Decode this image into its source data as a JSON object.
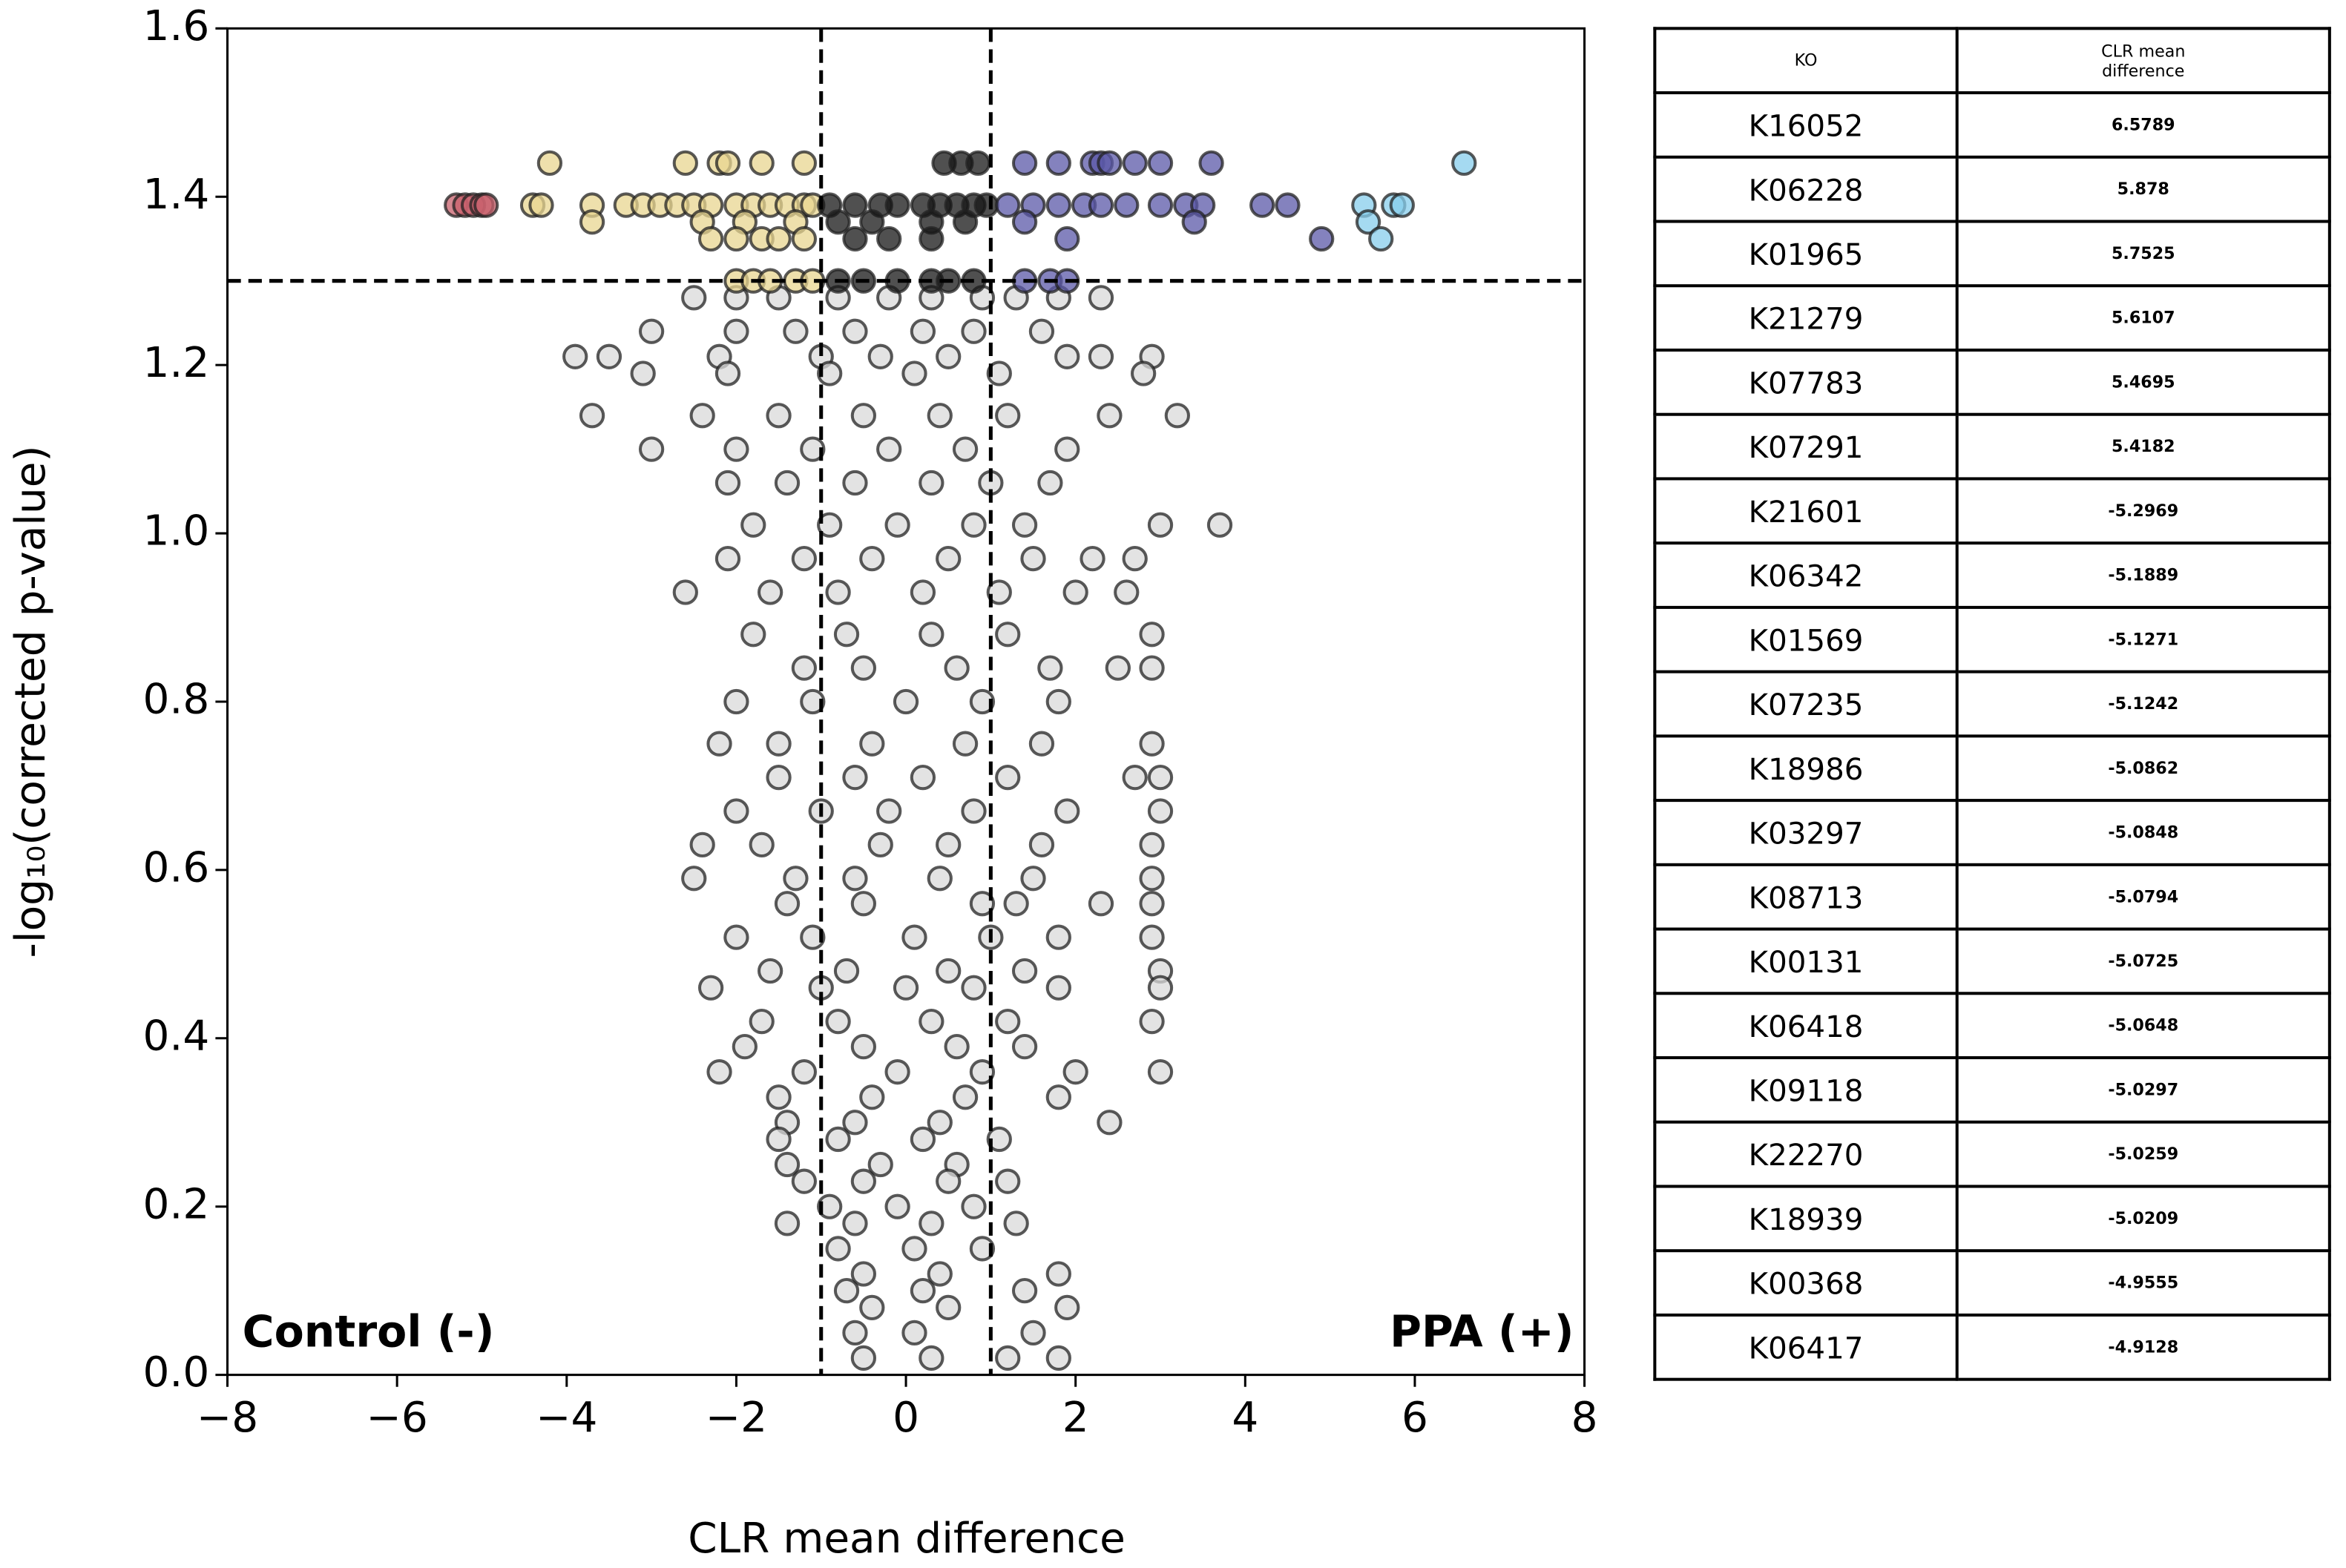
{
  "chart_data": {
    "type": "scatter",
    "xlabel": "CLR mean difference",
    "ylabel": "-log₁₀(corrected p-value)",
    "annotations": [
      "Control (-)",
      "PPA (+)"
    ],
    "xlim": [
      -8,
      8
    ],
    "xticks": [
      {
        "value": -8,
        "label": "−8"
      },
      {
        "value": -6,
        "label": "−6"
      },
      {
        "value": -4,
        "label": "−4"
      },
      {
        "value": -2,
        "label": "−2"
      },
      0,
      2,
      4,
      6,
      8
    ],
    "ylim": [
      0,
      1.6
    ],
    "yticks": [
      {
        "value": 0,
        "label": "0.0"
      },
      0.2,
      0.4,
      0.6,
      0.8,
      {
        "value": 1,
        "label": "1.0"
      },
      1.2,
      1.4,
      1.6
    ],
    "threshold_x": [
      -1,
      1
    ],
    "threshold_y": [
      1.3
    ],
    "series": [
      {
        "color": "#d9d9d9",
        "x": [
          -2.5,
          -2,
          -1.5,
          -0.8,
          -0.2,
          0.3,
          0.9,
          1.3,
          1.8,
          2.3,
          -3,
          -2,
          -1.3,
          -0.6,
          0.2,
          0.8,
          1.6,
          -3.9,
          -3.5,
          -2.2,
          -1,
          -0.3,
          0.5,
          1.9,
          2.3,
          2.9,
          -3.1,
          -2.1,
          -0.9,
          0.1,
          1.1,
          2.8,
          -3.7,
          -2.4,
          -1.5,
          -0.5,
          0.4,
          1.2,
          2.4,
          3.2,
          -3,
          -2,
          -1.1,
          -0.2,
          0.7,
          1.9,
          -2.1,
          -1.4,
          -0.6,
          0.3,
          1,
          1.7,
          -1.8,
          -0.9,
          -0.1,
          0.8,
          1.4,
          3,
          3.7,
          -2.1,
          -1.2,
          -0.4,
          0.5,
          1.5,
          2.2,
          2.7,
          -2.6,
          -1.6,
          -0.8,
          0.2,
          1.1,
          2,
          2.6,
          -1.8,
          -0.7,
          0.3,
          1.2,
          2.9,
          -1.2,
          -0.5,
          0.6,
          1.7,
          2.5,
          2.9,
          -2,
          -1.1,
          0,
          0.9,
          1.8,
          -2.2,
          -1.5,
          -0.4,
          0.7,
          1.6,
          2.9,
          -1.5,
          -0.6,
          0.2,
          1.2,
          2.7,
          3,
          -2,
          -1,
          -0.2,
          0.8,
          1.9,
          3,
          -2.4,
          -1.7,
          -0.3,
          0.5,
          1.6,
          2.9,
          -2.5,
          -1.3,
          -0.6,
          0.4,
          1.5,
          2.9,
          -1.4,
          -0.5,
          0.9,
          1.3,
          2.3,
          2.9,
          -2,
          -1.1,
          0.1,
          1,
          1.8,
          2.9,
          -1.6,
          -0.7,
          0.5,
          1.4,
          3,
          -2.3,
          -1,
          0,
          0.8,
          1.8,
          3,
          -1.7,
          -0.8,
          0.3,
          1.2,
          2.9,
          -1.9,
          -0.5,
          0.6,
          1.4,
          -2.2,
          -1.2,
          -0.1,
          0.9,
          2,
          3,
          -1.5,
          -0.4,
          0.7,
          1.8,
          -1.4,
          -0.6,
          0.4,
          2.4,
          -1.5,
          -0.8,
          0.2,
          1.1,
          -1.4,
          -0.3,
          0.6,
          -1.2,
          -0.5,
          0.5,
          1.2,
          -0.9,
          -0.1,
          0.8,
          -1.4,
          -0.6,
          0.3,
          1.3,
          -0.8,
          0.1,
          0.9,
          -0.5,
          0.4,
          1.8,
          -0.7,
          0.2,
          1.4,
          -0.4,
          0.5,
          1.9,
          -0.6,
          0.1,
          1.5,
          -0.5,
          0.3,
          1.2,
          1.8
        ],
        "values": [
          1.28,
          1.28,
          1.28,
          1.28,
          1.28,
          1.28,
          1.28,
          1.28,
          1.28,
          1.28,
          1.24,
          1.24,
          1.24,
          1.24,
          1.24,
          1.24,
          1.24,
          1.21,
          1.21,
          1.21,
          1.21,
          1.21,
          1.21,
          1.21,
          1.21,
          1.21,
          1.19,
          1.19,
          1.19,
          1.19,
          1.19,
          1.19,
          1.14,
          1.14,
          1.14,
          1.14,
          1.14,
          1.14,
          1.14,
          1.14,
          1.1,
          1.1,
          1.1,
          1.1,
          1.1,
          1.1,
          1.06,
          1.06,
          1.06,
          1.06,
          1.06,
          1.06,
          1.01,
          1.01,
          1.01,
          1.01,
          1.01,
          1.01,
          1.01,
          0.97,
          0.97,
          0.97,
          0.97,
          0.97,
          0.97,
          0.97,
          0.93,
          0.93,
          0.93,
          0.93,
          0.93,
          0.93,
          0.93,
          0.88,
          0.88,
          0.88,
          0.88,
          0.88,
          0.84,
          0.84,
          0.84,
          0.84,
          0.84,
          0.84,
          0.8,
          0.8,
          0.8,
          0.8,
          0.8,
          0.75,
          0.75,
          0.75,
          0.75,
          0.75,
          0.75,
          0.71,
          0.71,
          0.71,
          0.71,
          0.71,
          0.71,
          0.67,
          0.67,
          0.67,
          0.67,
          0.67,
          0.67,
          0.63,
          0.63,
          0.63,
          0.63,
          0.63,
          0.63,
          0.59,
          0.59,
          0.59,
          0.59,
          0.59,
          0.59,
          0.56,
          0.56,
          0.56,
          0.56,
          0.56,
          0.56,
          0.52,
          0.52,
          0.52,
          0.52,
          0.52,
          0.52,
          0.48,
          0.48,
          0.48,
          0.48,
          0.48,
          0.46,
          0.46,
          0.46,
          0.46,
          0.46,
          0.46,
          0.42,
          0.42,
          0.42,
          0.42,
          0.42,
          0.39,
          0.39,
          0.39,
          0.39,
          0.36,
          0.36,
          0.36,
          0.36,
          0.36,
          0.36,
          0.33,
          0.33,
          0.33,
          0.33,
          0.3,
          0.3,
          0.3,
          0.3,
          0.28,
          0.28,
          0.28,
          0.28,
          0.25,
          0.25,
          0.25,
          0.23,
          0.23,
          0.23,
          0.23,
          0.2,
          0.2,
          0.2,
          0.18,
          0.18,
          0.18,
          0.18,
          0.15,
          0.15,
          0.15,
          0.12,
          0.12,
          0.12,
          0.1,
          0.1,
          0.1,
          0.08,
          0.08,
          0.08,
          0.05,
          0.05,
          0.05,
          0.02,
          0.02,
          0.02,
          0.02
        ]
      },
      {
        "color": "#e8d590",
        "x": [
          -4.2,
          -2.6,
          -2.2,
          -2.1,
          -1.7,
          -1.2,
          -4.4,
          -4.3,
          -3.7,
          -3.3,
          -3.1,
          -2.9,
          -2.7,
          -2.5,
          -2.3,
          -2,
          -1.8,
          -1.6,
          -1.4,
          -1.2,
          -1.1,
          -3.7,
          -2.4,
          -1.9,
          -1.3,
          -2.3,
          -2,
          -1.7,
          -1.5,
          -1.2,
          -2,
          -1.8,
          -1.6,
          -1.3,
          -1.1
        ],
        "values": [
          1.44,
          1.44,
          1.44,
          1.44,
          1.44,
          1.44,
          1.39,
          1.39,
          1.39,
          1.39,
          1.39,
          1.39,
          1.39,
          1.39,
          1.39,
          1.39,
          1.39,
          1.39,
          1.39,
          1.39,
          1.39,
          1.37,
          1.37,
          1.37,
          1.37,
          1.35,
          1.35,
          1.35,
          1.35,
          1.35,
          1.3,
          1.3,
          1.3,
          1.3,
          1.3
        ]
      },
      {
        "color": "#c8606c",
        "x": [
          -5.3,
          -5.2,
          -5.1,
          -5,
          -4.95
        ],
        "values": [
          1.39,
          1.39,
          1.39,
          1.39,
          1.39
        ]
      },
      {
        "color": "#151515",
        "x": [
          0.45,
          0.65,
          0.85,
          -0.9,
          -0.6,
          -0.3,
          -0.1,
          0.2,
          0.4,
          0.6,
          0.8,
          0.95,
          -0.8,
          -0.4,
          0.3,
          0.7,
          -0.6,
          -0.2,
          0.3,
          -0.8,
          -0.5,
          -0.1,
          0.3,
          0.5,
          0.8
        ],
        "values": [
          1.44,
          1.44,
          1.44,
          1.39,
          1.39,
          1.39,
          1.39,
          1.39,
          1.39,
          1.39,
          1.39,
          1.39,
          1.37,
          1.37,
          1.37,
          1.37,
          1.35,
          1.35,
          1.35,
          1.3,
          1.3,
          1.3,
          1.3,
          1.3,
          1.3
        ]
      },
      {
        "color": "#5b58a8",
        "x": [
          1.4,
          1.8,
          2.2,
          2.3,
          2.4,
          2.7,
          3,
          3.6,
          1.2,
          1.5,
          1.8,
          2.1,
          2.3,
          2.6,
          3,
          3.3,
          3.5,
          4.2,
          4.5,
          1.4,
          3.4,
          1.9,
          4.9,
          1.4,
          1.7,
          1.9
        ],
        "values": [
          1.44,
          1.44,
          1.44,
          1.44,
          1.44,
          1.44,
          1.44,
          1.44,
          1.39,
          1.39,
          1.39,
          1.39,
          1.39,
          1.39,
          1.39,
          1.39,
          1.39,
          1.39,
          1.39,
          1.37,
          1.37,
          1.35,
          1.35,
          1.3,
          1.3,
          1.3
        ]
      },
      {
        "color": "#87cdec",
        "x": [
          5.4,
          5.45,
          5.6,
          5.75,
          5.85,
          6.58
        ],
        "values": [
          1.39,
          1.37,
          1.35,
          1.39,
          1.39,
          1.44
        ]
      }
    ]
  },
  "table": {
    "columns": [
      "KO",
      "CLR mean difference"
    ],
    "rows": [
      [
        "K16052",
        "6.5789"
      ],
      [
        "K06228",
        "5.878"
      ],
      [
        "K01965",
        "5.7525"
      ],
      [
        "K21279",
        "5.6107"
      ],
      [
        "K07783",
        "5.4695"
      ],
      [
        "K07291",
        "5.4182"
      ],
      [
        "K21601",
        "-5.2969"
      ],
      [
        "K06342",
        "-5.1889"
      ],
      [
        "K01569",
        "-5.1271"
      ],
      [
        "K07235",
        "-5.1242"
      ],
      [
        "K18986",
        "-5.0862"
      ],
      [
        "K03297",
        "-5.0848"
      ],
      [
        "K08713",
        "-5.0794"
      ],
      [
        "K00131",
        "-5.0725"
      ],
      [
        "K06418",
        "-5.0648"
      ],
      [
        "K09118",
        "-5.0297"
      ],
      [
        "K22270",
        "-5.0259"
      ],
      [
        "K18939",
        "-5.0209"
      ],
      [
        "K00368",
        "-4.9555"
      ],
      [
        "K06417",
        "-4.9128"
      ]
    ]
  }
}
